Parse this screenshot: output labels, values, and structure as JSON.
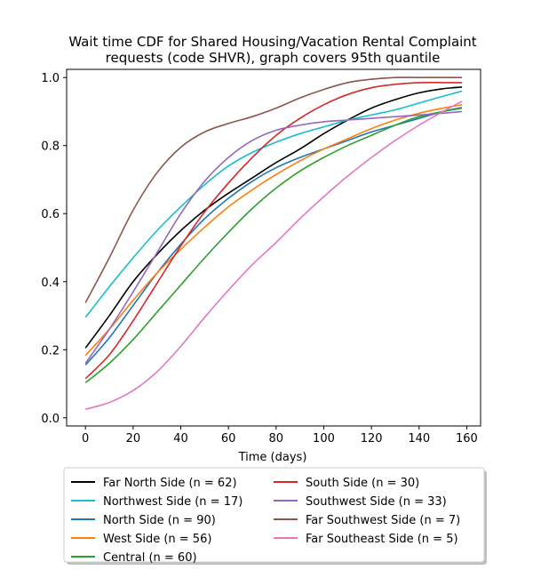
{
  "chart_data": {
    "type": "line",
    "title_line1": "Wait time CDF for Shared Housing/Vacation Rental Complaint",
    "title_line2": "requests (code SHVR), graph covers 95th quantile",
    "xlabel": "Time (days)",
    "ylabel": "",
    "xlim": [
      -7.9,
      165.8
    ],
    "ylim": [
      -0.024,
      1.024
    ],
    "xticks": [
      0,
      20,
      40,
      60,
      80,
      100,
      120,
      140,
      160
    ],
    "yticks": [
      0.0,
      0.2,
      0.4,
      0.6,
      0.8,
      1.0
    ],
    "xtick_labels": [
      "0",
      "20",
      "40",
      "60",
      "80",
      "100",
      "120",
      "140",
      "160"
    ],
    "ytick_labels": [
      "0.0",
      "0.2",
      "0.4",
      "0.6",
      "0.8",
      "1.0"
    ],
    "grid": false,
    "legend_position": "below-plot",
    "x": [
      0,
      10,
      20,
      30,
      40,
      50,
      60,
      70,
      80,
      90,
      100,
      110,
      120,
      130,
      140,
      150,
      158
    ],
    "series": [
      {
        "name": "Far North Side (n = 62)",
        "color": "#000000",
        "values": [
          0.205,
          0.3,
          0.4,
          0.48,
          0.55,
          0.61,
          0.66,
          0.705,
          0.75,
          0.79,
          0.835,
          0.875,
          0.91,
          0.935,
          0.955,
          0.967,
          0.972
        ]
      },
      {
        "name": "Northwest Side (n = 17)",
        "color": "#17becf",
        "values": [
          0.295,
          0.385,
          0.47,
          0.55,
          0.62,
          0.685,
          0.74,
          0.78,
          0.81,
          0.835,
          0.855,
          0.875,
          0.89,
          0.905,
          0.925,
          0.945,
          0.96
        ]
      },
      {
        "name": "North Side (n = 90)",
        "color": "#1f77b4",
        "values": [
          0.155,
          0.235,
          0.33,
          0.425,
          0.51,
          0.585,
          0.645,
          0.695,
          0.735,
          0.765,
          0.79,
          0.815,
          0.84,
          0.86,
          0.88,
          0.9,
          0.912
        ]
      },
      {
        "name": "West Side (n = 56)",
        "color": "#ff7f0e",
        "values": [
          0.183,
          0.26,
          0.345,
          0.425,
          0.495,
          0.56,
          0.62,
          0.67,
          0.715,
          0.755,
          0.79,
          0.82,
          0.85,
          0.875,
          0.895,
          0.91,
          0.92
        ]
      },
      {
        "name": "Central (n = 60)",
        "color": "#2ca02c",
        "values": [
          0.103,
          0.16,
          0.23,
          0.31,
          0.39,
          0.47,
          0.545,
          0.615,
          0.675,
          0.725,
          0.765,
          0.8,
          0.83,
          0.86,
          0.885,
          0.9,
          0.91
        ]
      },
      {
        "name": "South Side (n = 30)",
        "color": "#d62728",
        "values": [
          0.115,
          0.185,
          0.285,
          0.395,
          0.505,
          0.605,
          0.69,
          0.765,
          0.83,
          0.88,
          0.92,
          0.95,
          0.97,
          0.98,
          0.985,
          0.985,
          0.985
        ]
      },
      {
        "name": "Southwest Side (n = 33)",
        "color": "#9467bd",
        "values": [
          0.16,
          0.26,
          0.37,
          0.485,
          0.6,
          0.695,
          0.765,
          0.815,
          0.845,
          0.86,
          0.87,
          0.875,
          0.88,
          0.885,
          0.89,
          0.895,
          0.9
        ]
      },
      {
        "name": "Far Southwest Side (n = 7)",
        "color": "#8c564b",
        "values": [
          0.338,
          0.47,
          0.61,
          0.72,
          0.795,
          0.84,
          0.865,
          0.885,
          0.91,
          0.94,
          0.965,
          0.985,
          0.995,
          1.0,
          1.0,
          1.0,
          1.0
        ]
      },
      {
        "name": "Far Southeast Side (n = 5)",
        "color": "#e377c2",
        "values": [
          0.025,
          0.045,
          0.08,
          0.135,
          0.21,
          0.295,
          0.375,
          0.45,
          0.515,
          0.585,
          0.65,
          0.71,
          0.765,
          0.815,
          0.86,
          0.9,
          0.93
        ]
      }
    ]
  }
}
